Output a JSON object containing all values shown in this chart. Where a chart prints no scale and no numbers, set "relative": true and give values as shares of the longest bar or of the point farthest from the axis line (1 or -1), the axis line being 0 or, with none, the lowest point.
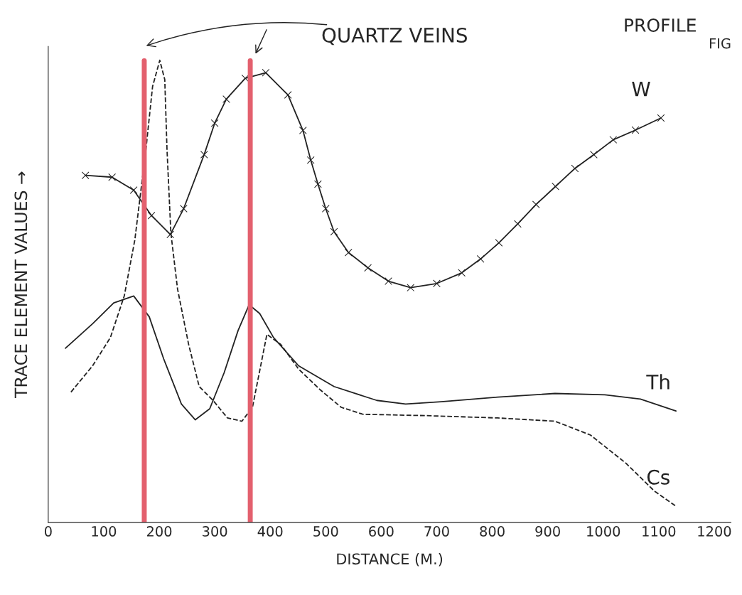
{
  "chart_data": {
    "type": "line",
    "title": "PROFILE",
    "subtitle": "FIG",
    "xlabel": "DISTANCE (M.)",
    "ylabel": "TRACE ELEMENT VALUES →",
    "annotations": [
      "QUARTZ VEINS"
    ],
    "relative": true,
    "xlim": [
      0,
      1230
    ],
    "xticks": [
      0,
      100,
      200,
      300,
      400,
      500,
      600,
      700,
      800,
      900,
      1000,
      1100,
      1200
    ],
    "grid": false,
    "ref_lines": [
      {
        "axis": "x",
        "value": 173,
        "color": "#e3606e"
      },
      {
        "axis": "x",
        "value": 364,
        "color": "#e3606e"
      }
    ],
    "series": [
      {
        "name": "W",
        "color": "#222222",
        "marker": "cross",
        "line_style": "solid",
        "x": [
          67,
          115,
          154,
          186,
          220,
          244,
          281,
          300,
          321,
          355,
          392,
          432,
          459,
          473,
          486,
          500,
          515,
          541,
          576,
          613,
          653,
          700,
          745,
          779,
          812,
          846,
          879,
          914,
          949,
          983,
          1018,
          1058,
          1104
        ],
        "values": [
          0.751,
          0.747,
          0.719,
          0.664,
          0.623,
          0.679,
          0.796,
          0.864,
          0.916,
          0.961,
          0.973,
          0.925,
          0.848,
          0.784,
          0.732,
          0.679,
          0.629,
          0.584,
          0.551,
          0.522,
          0.508,
          0.517,
          0.54,
          0.57,
          0.605,
          0.646,
          0.688,
          0.727,
          0.766,
          0.796,
          0.828,
          0.849,
          0.875
        ]
      },
      {
        "name": "Th",
        "color": "#222222",
        "marker": "none",
        "line_style": "solid",
        "x": [
          31,
          80,
          118,
          154,
          182,
          208,
          240,
          265,
          291,
          317,
          342,
          362,
          381,
          406,
          451,
          515,
          592,
          644,
          708,
          810,
          913,
          1003,
          1067,
          1131
        ],
        "values": [
          0.377,
          0.43,
          0.475,
          0.49,
          0.445,
          0.354,
          0.256,
          0.222,
          0.246,
          0.324,
          0.415,
          0.471,
          0.452,
          0.4,
          0.339,
          0.294,
          0.264,
          0.256,
          0.261,
          0.271,
          0.279,
          0.276,
          0.267,
          0.241
        ]
      },
      {
        "name": "Cs",
        "color": "#222222",
        "marker": "none",
        "line_style": "dashed",
        "x": [
          41,
          80,
          112,
          137,
          156,
          176,
          188,
          201,
          210,
          214,
          221,
          233,
          253,
          272,
          297,
          323,
          349,
          368,
          394,
          419,
          451,
          490,
          528,
          567,
          682,
          810,
          913,
          977,
          1041,
          1092,
          1131
        ],
        "values": [
          0.282,
          0.339,
          0.4,
          0.49,
          0.611,
          0.807,
          0.943,
          1.0,
          0.958,
          0.807,
          0.626,
          0.505,
          0.385,
          0.294,
          0.264,
          0.226,
          0.219,
          0.249,
          0.407,
          0.385,
          0.332,
          0.287,
          0.249,
          0.234,
          0.231,
          0.226,
          0.219,
          0.189,
          0.128,
          0.068,
          0.035
        ]
      }
    ]
  }
}
